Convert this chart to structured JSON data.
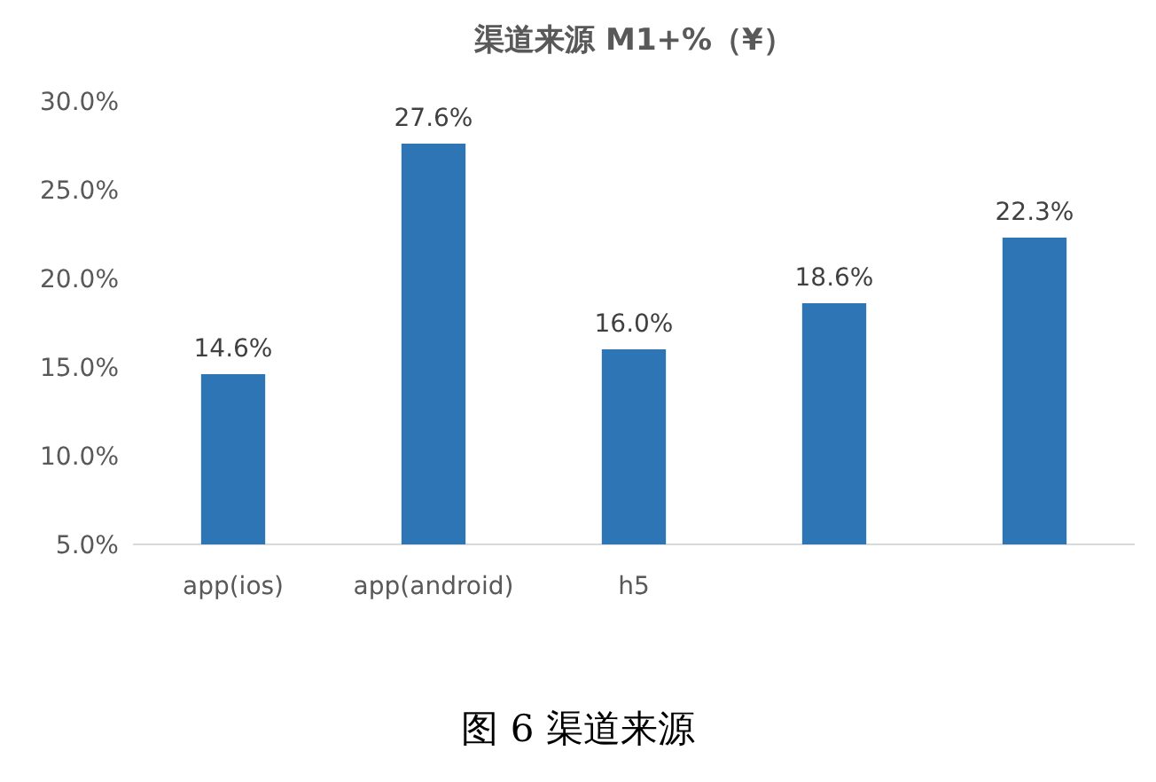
{
  "chart_data": {
    "type": "bar",
    "title": "渠道来源 M1+%（¥）",
    "categories": [
      "app(ios)",
      "app(android)",
      "h5",
      null,
      null
    ],
    "values": [
      14.6,
      27.6,
      16.0,
      18.6,
      22.3
    ],
    "value_labels": [
      "14.6%",
      "27.6%",
      "16.0%",
      "18.6%",
      "22.3%"
    ],
    "color": "#2e75b6",
    "ylim": [
      5,
      30
    ],
    "yticks": [
      {
        "value": 5,
        "label": "5.0%"
      },
      {
        "value": 10,
        "label": "10.0%"
      },
      {
        "value": 15,
        "label": "15.0%"
      },
      {
        "value": 20,
        "label": "20.0%"
      },
      {
        "value": 25,
        "label": "25.0%"
      },
      {
        "value": 30,
        "label": "30.0%"
      }
    ],
    "grid": false,
    "annotations": [
      "图 6  渠道来源"
    ]
  }
}
